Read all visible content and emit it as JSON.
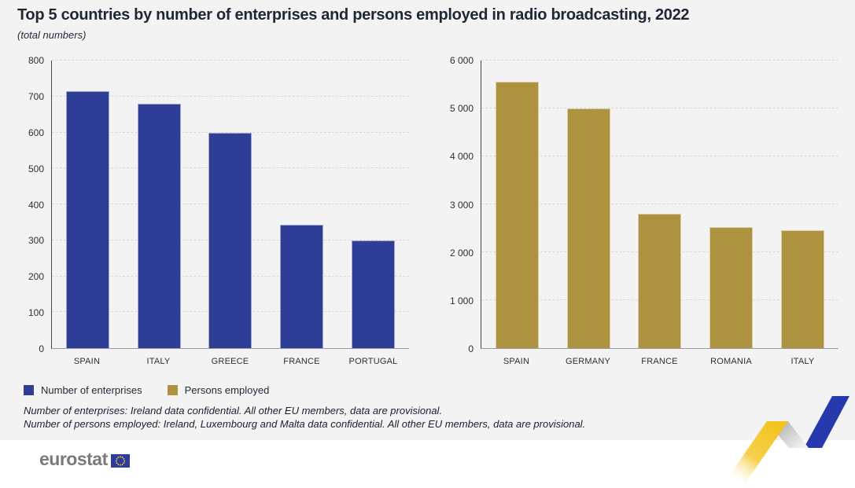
{
  "header": {
    "title": "Top 5 countries by number of enterprises and persons employed in radio broadcasting, 2022",
    "subtitle": "(total numbers)"
  },
  "chart_data": [
    {
      "type": "bar",
      "series_name": "Number of enterprises",
      "categories": [
        "SPAIN",
        "ITALY",
        "GREECE",
        "FRANCE",
        "PORTUGAL"
      ],
      "values": [
        715,
        680,
        598,
        343,
        300
      ],
      "ylim": [
        0,
        800
      ],
      "ytick_values": [
        0,
        100,
        200,
        300,
        400,
        500,
        600,
        700,
        800
      ],
      "ytick_labels": [
        "0",
        "100",
        "200",
        "300",
        "400",
        "500",
        "600",
        "700",
        "800"
      ],
      "color": "#2e3d96",
      "grid": "dashed-horizontal",
      "xlabel": "",
      "ylabel": ""
    },
    {
      "type": "bar",
      "series_name": "Persons employed",
      "categories": [
        "SPAIN",
        "GERMANY",
        "FRANCE",
        "ROMANIA",
        "ITALY"
      ],
      "values": [
        5550,
        5000,
        2810,
        2520,
        2455
      ],
      "ylim": [
        0,
        6000
      ],
      "ytick_values": [
        0,
        1000,
        2000,
        3000,
        4000,
        5000,
        6000
      ],
      "ytick_labels": [
        "0",
        "1 000",
        "2 000",
        "3 000",
        "4 000",
        "5 000",
        "6 000"
      ],
      "color": "#ad9240",
      "grid": "dashed-horizontal",
      "xlabel": "",
      "ylabel": ""
    }
  ],
  "legend": {
    "items": [
      {
        "label": "Number of enterprises",
        "color": "#2e3d96"
      },
      {
        "label": "Persons employed",
        "color": "#ad9240"
      }
    ],
    "position": "bottom-left"
  },
  "footnotes": {
    "line1": "Number of enterprises: Ireland data confidential. All other EU members, data are provisional.",
    "line2": "Number of persons employed: Ireland, Luxembourg and Malta data confidential. All other EU members, data are provisional."
  },
  "footer": {
    "logo_text": "eurostat"
  },
  "colors": {
    "background": "#f3f3f4",
    "enterprises_blue": "#2e3d96",
    "employed_gold": "#ad9240",
    "decor_yellow": "#f4c21f",
    "decor_blue": "#2639ad",
    "eu_flag_blue": "#2c3ba0",
    "eu_star_yellow": "#f8c91c"
  }
}
